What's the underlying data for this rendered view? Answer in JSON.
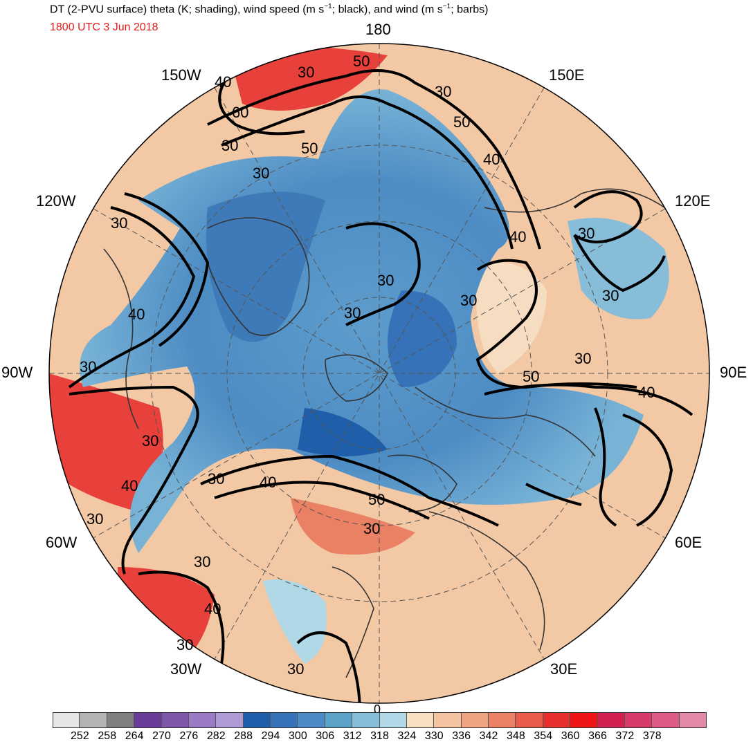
{
  "title_prefix": "DT (2-PVU surface) theta (K; shading), wind speed (m s",
  "title_sup1": "−1",
  "title_mid": "; black), and wind (m s",
  "title_sup2": "−1",
  "title_suffix": "; barbs)",
  "valid_time": "1800 UTC 3 Jun 2018",
  "lon_labels": {
    "l180": "180",
    "l150w": "150W",
    "l150e": "150E",
    "l120w": "120W",
    "l120e": "120E",
    "l90w": "90W",
    "l90e": "90E",
    "l60w": "60W",
    "l60e": "60E",
    "l30w": "30W",
    "l30e": "30E",
    "l0": "0"
  },
  "contour_labels": [
    "50",
    "30",
    "40",
    "60",
    "30",
    "50",
    "30",
    "30",
    "50",
    "40",
    "30",
    "40",
    "30",
    "30",
    "30",
    "30",
    "40",
    "30",
    "30",
    "50",
    "40",
    "30",
    "30",
    "40",
    "40",
    "50",
    "30",
    "30",
    "30",
    "40",
    "30",
    "30",
    "30"
  ],
  "colorbar": {
    "colors": [
      "#e6e6e6",
      "#b3b3b3",
      "#808080",
      "#6a3d9a",
      "#8058a8",
      "#9a7ac4",
      "#b09ad6",
      "#1f5ea8",
      "#3572b8",
      "#4b8ac6",
      "#5ba3c6",
      "#87bdd8",
      "#b0d8e6",
      "#f7dfc2",
      "#f4c3a1",
      "#f0a382",
      "#ea8064",
      "#e85b4b",
      "#e8302e",
      "#ef1616",
      "#d42050",
      "#d83a6a",
      "#dc5a84",
      "#e28aa8"
    ],
    "ticks": [
      "252",
      "258",
      "264",
      "270",
      "276",
      "282",
      "288",
      "294",
      "300",
      "306",
      "312",
      "318",
      "324",
      "330",
      "336",
      "342",
      "348",
      "354",
      "360",
      "366",
      "372",
      "378"
    ]
  },
  "palette": {
    "cold": "#4a86c0",
    "cool": "#8cc0dc",
    "neutral": "#f6dcc0",
    "warm": "#ee9a7a",
    "hot": "#e8403a",
    "jet": "#000000",
    "coast": "#333333"
  }
}
